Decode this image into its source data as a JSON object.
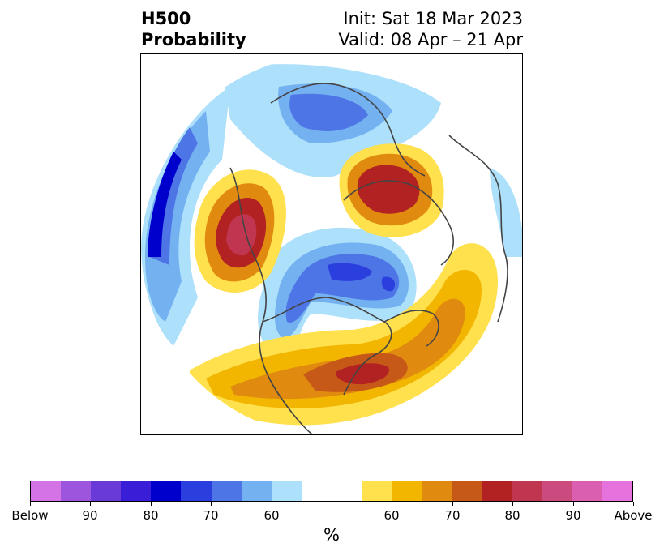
{
  "title": {
    "left_line1": "H500",
    "left_line2": "Probability",
    "right_line1": "Init: Sat 18 Mar 2023",
    "right_line2": "Valid: 08 Apr – 21 Apr"
  },
  "colorbar": {
    "unit": "%",
    "segments": [
      "#d373e6",
      "#9d55de",
      "#6a3ad9",
      "#3a1dd6",
      "#0000cc",
      "#2a3fde",
      "#4e75e6",
      "#74b1f0",
      "#ade0fa",
      "#ffffff",
      "#ffe04d",
      "#f2b600",
      "#e08a10",
      "#c65818",
      "#b22222",
      "#c03550",
      "#cc4b7e",
      "#db5fb1",
      "#e673dd"
    ],
    "tick_labels": [
      "Below",
      "90",
      "80",
      "70",
      "60",
      "60",
      "70",
      "80",
      "90",
      "Above"
    ]
  },
  "map": {
    "projection": "north-polar-stereographic",
    "legend_colors": {
      "below_light": "#ade0fa",
      "below_mid": "#74b1f0",
      "below_strong": "#4e75e6",
      "below_deep": "#0000cc",
      "above_light": "#ffe04d",
      "above_mid": "#f2b600",
      "above_strong": "#e08a10",
      "above_deep": "#c65818",
      "above_max": "#b22222",
      "above_peak": "#c03550"
    }
  }
}
